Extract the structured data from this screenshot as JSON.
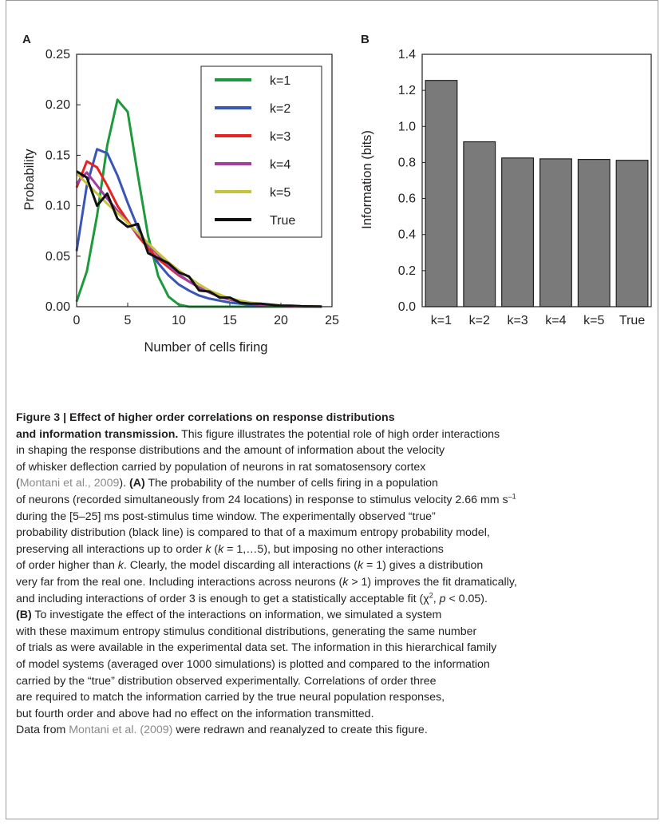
{
  "chart_data": [
    {
      "panel": "A",
      "type": "line",
      "xlabel": "Number of cells firing",
      "ylabel": "Probability",
      "xlim": [
        0,
        25
      ],
      "ylim": [
        0,
        0.25
      ],
      "xticks": [
        0,
        5,
        10,
        15,
        20,
        25
      ],
      "yticks": [
        "0.00",
        "0.05",
        "0.10",
        "0.15",
        "0.20",
        "0.25"
      ],
      "legend_position": "top-right",
      "series": [
        {
          "name": "k=1",
          "color": "#1e9a3c",
          "x": [
            0,
            1,
            2,
            3,
            4,
            5,
            6,
            7,
            8,
            9,
            10,
            11,
            12,
            13,
            14,
            15,
            16,
            17,
            18,
            19,
            20,
            21,
            22,
            23,
            24
          ],
          "y": [
            0.005,
            0.035,
            0.09,
            0.16,
            0.205,
            0.193,
            0.13,
            0.07,
            0.03,
            0.01,
            0.002,
            0,
            0,
            0,
            0,
            0,
            0,
            0,
            0,
            0,
            0,
            0,
            0,
            0,
            0
          ]
        },
        {
          "name": "k=2",
          "color": "#3a55b8",
          "x": [
            0,
            1,
            2,
            3,
            4,
            5,
            6,
            7,
            8,
            9,
            10,
            11,
            12,
            13,
            14,
            15,
            16,
            17,
            18,
            19,
            20,
            21,
            22,
            23,
            24
          ],
          "y": [
            0.055,
            0.12,
            0.156,
            0.152,
            0.13,
            0.103,
            0.078,
            0.058,
            0.043,
            0.031,
            0.022,
            0.016,
            0.011,
            0.008,
            0.006,
            0.004,
            0.003,
            0.002,
            0.0015,
            0.001,
            0.0008,
            0.0006,
            0.0004,
            0.0002,
            0.0001
          ]
        },
        {
          "name": "k=3",
          "color": "#e8231f",
          "x": [
            0,
            1,
            2,
            3,
            4,
            5,
            6,
            7,
            8,
            9,
            10,
            11,
            12,
            13,
            14,
            15,
            16,
            17,
            18,
            19,
            20,
            21,
            22,
            23,
            24
          ],
          "y": [
            0.118,
            0.144,
            0.138,
            0.12,
            0.1,
            0.085,
            0.07,
            0.058,
            0.047,
            0.039,
            0.031,
            0.025,
            0.019,
            0.014,
            0.01,
            0.007,
            0.005,
            0.003,
            0.002,
            0.0013,
            0.0008,
            0.0005,
            0.0003,
            0.0002,
            0.0001
          ]
        },
        {
          "name": "k=4",
          "color": "#a43fa2",
          "x": [
            0,
            1,
            2,
            3,
            4,
            5,
            6,
            7,
            8,
            9,
            10,
            11,
            12,
            13,
            14,
            15,
            16,
            17,
            18,
            19,
            20,
            21,
            22,
            23,
            24
          ],
          "y": [
            0.122,
            0.133,
            0.12,
            0.107,
            0.095,
            0.083,
            0.072,
            0.062,
            0.051,
            0.041,
            0.032,
            0.025,
            0.019,
            0.014,
            0.01,
            0.007,
            0.005,
            0.003,
            0.002,
            0.0013,
            0.0008,
            0.0005,
            0.0003,
            0.0002,
            0.0001
          ]
        },
        {
          "name": "k=5",
          "color": "#c5c23e",
          "x": [
            0,
            1,
            2,
            3,
            4,
            5,
            6,
            7,
            8,
            9,
            10,
            11,
            12,
            13,
            14,
            15,
            16,
            17,
            18,
            19,
            20,
            21,
            22,
            23,
            24
          ],
          "y": [
            0.132,
            0.122,
            0.112,
            0.102,
            0.093,
            0.083,
            0.073,
            0.063,
            0.053,
            0.044,
            0.036,
            0.029,
            0.022,
            0.016,
            0.012,
            0.008,
            0.006,
            0.004,
            0.003,
            0.002,
            0.0013,
            0.0008,
            0.0005,
            0.0003,
            0.0001
          ]
        },
        {
          "name": "True",
          "color": "#111111",
          "x": [
            0,
            1,
            2,
            3,
            4,
            5,
            6,
            7,
            8,
            9,
            10,
            11,
            12,
            13,
            14,
            15,
            16,
            17,
            18,
            19,
            20,
            21,
            22,
            23,
            24
          ],
          "y": [
            0.134,
            0.128,
            0.1,
            0.112,
            0.087,
            0.079,
            0.082,
            0.053,
            0.048,
            0.043,
            0.034,
            0.03,
            0.016,
            0.015,
            0.009,
            0.009,
            0.004,
            0.003,
            0.003,
            0.002,
            0.001,
            0.001,
            0.0005,
            0.0003,
            0.0001
          ]
        }
      ]
    },
    {
      "panel": "B",
      "type": "bar",
      "ylabel": "Information (bits)",
      "xlabel": "",
      "ylim": [
        0,
        1.4
      ],
      "yticks": [
        "0.0",
        "0.2",
        "0.4",
        "0.6",
        "0.8",
        "1.0",
        "1.2",
        "1.4"
      ],
      "categories": [
        "k=1",
        "k=2",
        "k=3",
        "k=4",
        "k=5",
        "True"
      ],
      "values": [
        1.255,
        0.915,
        0.825,
        0.82,
        0.817,
        0.812
      ],
      "bar_color": "#7a7a7a"
    }
  ],
  "caption": {
    "title_line1": "Figure 3 | Effect of higher order correlations on response distributions",
    "title_line2": "and information transmission.",
    "t2_rest": " This figure illustrates the potential role of high order interactions",
    "l3": "in shaping the response distributions and the amount of information about the velocity",
    "l4": "of whisker deflection carried by population of neurons in rat somatosensory cortex",
    "l5_open": "(",
    "l5_cite": "Montani et al., 2009",
    "l5_close": "). ",
    "l5_A": "(A)",
    "l5_rest": " The probability of the number of cells firing in a population",
    "l6_main": "of neurons (recorded simultaneously from 24 locations) in response to stimulus velocity 2.66 mm s",
    "l6_sup": "–1",
    "l7": "during the [5–25] ms post-stimulus time window. The experimentally observed “true”",
    "l8": "probability distribution (black line) is compared to that of a maximum entropy probability model,",
    "l9_a": "preserving all interactions up to order ",
    "l9_k": "k",
    "l9_b": " (",
    "l9_k2": "k",
    "l9_c": " = 1,…5), but imposing no other interactions",
    "l10_a": "of order higher than ",
    "l10_k": "k",
    "l10_b": ". Clearly, the model discarding all interactions (",
    "l10_k2": "k",
    "l10_c": " = 1) gives a distribution",
    "l11_a": "very far from the real one. Including interactions across neurons (",
    "l11_k": "k",
    "l11_b": " > 1) improves the fit dramatically,",
    "l12_a": "and including interactions of order 3 is enough to get a statistically acceptable fit (χ",
    "l12_sup": "2",
    "l12_b": ", ",
    "l12_p": "p",
    "l12_c": " < 0.05).",
    "l13_B": "(B)",
    "l13_rest": " To investigate the effect of the interactions on information, we simulated a system",
    "l14": "with these maximum entropy stimulus conditional distributions, generating the same number",
    "l15": "of trials as were available in the experimental data set. The information in this hierarchical family",
    "l16": "of model systems (averaged over 1000 simulations) is plotted and compared to the information",
    "l17": "carried by the “true” distribution observed experimentally. Correlations of order three",
    "l18": " are required to match the information carried by the true neural population responses,",
    "l19": "but fourth order and above had no effect on the information transmitted.",
    "l20_a": "Data from ",
    "l20_cite": "Montani et al. (2009)",
    "l20_b": " were redrawn and reanalyzed to create this figure."
  }
}
